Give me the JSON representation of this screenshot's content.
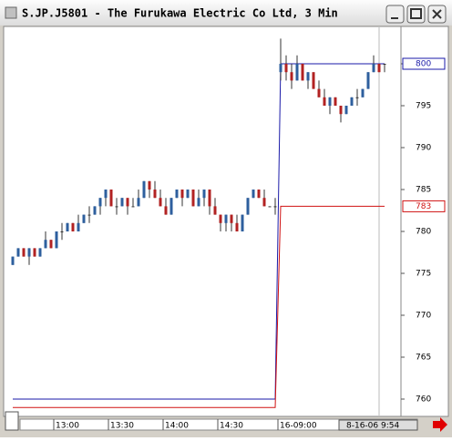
{
  "chart_data": {
    "type": "candlestick",
    "title": "S.JP.J5801 - The Furukawa Electric Co Ltd, 3 Min",
    "categories": [
      null,
      null,
      null,
      null,
      null,
      null,
      null,
      null,
      "13:00",
      null,
      null,
      null,
      null,
      null,
      null,
      null,
      null,
      null,
      "13:30",
      null,
      null,
      null,
      null,
      null,
      null,
      null,
      null,
      null,
      "14:00",
      null,
      null,
      null,
      null,
      null,
      null,
      null,
      null,
      null,
      "14:30",
      null,
      null,
      null,
      null,
      null,
      null,
      null,
      null,
      null,
      null,
      "16-09:00",
      null,
      null,
      null,
      null,
      null,
      null,
      null,
      null,
      null,
      null,
      null,
      null,
      null,
      null,
      null,
      null,
      null,
      null,
      null
    ],
    "open": [
      776,
      777,
      778,
      777,
      778,
      777,
      778,
      779,
      778,
      780,
      780,
      781,
      780,
      781,
      782,
      782,
      783,
      784,
      785,
      783,
      783,
      784,
      783,
      783,
      784,
      786,
      785,
      784,
      783,
      782,
      784,
      785,
      784,
      785,
      783,
      784,
      785,
      783,
      782,
      781,
      782,
      781,
      780,
      782,
      784,
      785,
      784,
      783,
      783,
      799,
      800,
      799,
      798,
      800,
      798,
      799,
      797,
      796,
      795,
      796,
      795,
      794,
      795,
      796,
      796,
      797,
      799,
      800,
      800
    ],
    "high": [
      777,
      778,
      778,
      778,
      778,
      778,
      780,
      779,
      780,
      781,
      781,
      781,
      782,
      782,
      783,
      783,
      784,
      785,
      785,
      784,
      784,
      784,
      784,
      785,
      786,
      786,
      786,
      785,
      784,
      784,
      785,
      785,
      785,
      785,
      785,
      785,
      785,
      784,
      782,
      782,
      782,
      782,
      782,
      784,
      785,
      785,
      785,
      783,
      784,
      803,
      801,
      800,
      801,
      800,
      799,
      799,
      798,
      797,
      796,
      796,
      795,
      795,
      796,
      797,
      797,
      799,
      801,
      800,
      800
    ],
    "low": [
      776,
      777,
      777,
      776,
      777,
      777,
      778,
      778,
      778,
      779,
      780,
      780,
      780,
      781,
      781,
      782,
      782,
      783,
      783,
      782,
      783,
      782,
      783,
      783,
      784,
      784,
      784,
      783,
      782,
      782,
      784,
      783,
      784,
      783,
      783,
      783,
      782,
      782,
      780,
      780,
      780,
      780,
      780,
      782,
      784,
      784,
      783,
      783,
      782,
      798,
      798,
      797,
      798,
      798,
      797,
      797,
      796,
      795,
      794,
      795,
      793,
      794,
      795,
      795,
      796,
      797,
      799,
      799,
      799
    ],
    "close": [
      777,
      778,
      777,
      778,
      777,
      778,
      779,
      778,
      780,
      780,
      781,
      780,
      781,
      782,
      782,
      783,
      784,
      785,
      783,
      783,
      784,
      783,
      783,
      784,
      786,
      785,
      784,
      783,
      782,
      784,
      785,
      784,
      785,
      783,
      784,
      785,
      783,
      782,
      781,
      782,
      781,
      780,
      782,
      784,
      785,
      784,
      783,
      783,
      783,
      800,
      799,
      798,
      800,
      798,
      799,
      797,
      796,
      795,
      796,
      795,
      794,
      795,
      796,
      796,
      797,
      799,
      800,
      799,
      800
    ],
    "up_color": "#2e5f9e",
    "down_color": "#b22222",
    "lines": [
      {
        "color": "#1a1aa8",
        "values": [
          760,
          760,
          760,
          760,
          760,
          760,
          760,
          760,
          760,
          760,
          760,
          760,
          760,
          760,
          760,
          760,
          760,
          760,
          760,
          760,
          760,
          760,
          760,
          760,
          760,
          760,
          760,
          760,
          760,
          760,
          760,
          760,
          760,
          760,
          760,
          760,
          760,
          760,
          760,
          760,
          760,
          760,
          760,
          760,
          760,
          760,
          760,
          760,
          760,
          800,
          800,
          800,
          800,
          800,
          800,
          800,
          800,
          800,
          800,
          800,
          800,
          800,
          800,
          800,
          800,
          800,
          800,
          800,
          800
        ]
      },
      {
        "color": "#d01010",
        "values": [
          759,
          759,
          759,
          759,
          759,
          759,
          759,
          759,
          759,
          759,
          759,
          759,
          759,
          759,
          759,
          759,
          759,
          759,
          759,
          759,
          759,
          759,
          759,
          759,
          759,
          759,
          759,
          759,
          759,
          759,
          759,
          759,
          759,
          759,
          759,
          759,
          759,
          759,
          759,
          759,
          759,
          759,
          759,
          759,
          759,
          759,
          759,
          759,
          759,
          783,
          783,
          783,
          783,
          783,
          783,
          783,
          783,
          783,
          783,
          783,
          783,
          783,
          783,
          783,
          783,
          783,
          783,
          783,
          783
        ]
      }
    ],
    "ylim": [
      758,
      804
    ],
    "yticks": [
      760,
      765,
      770,
      775,
      780,
      785,
      790,
      795,
      800
    ],
    "cursor_label": "8-16-06  9:54"
  }
}
